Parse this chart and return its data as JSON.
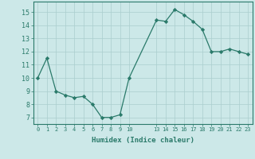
{
  "x": [
    0,
    1,
    2,
    3,
    4,
    5,
    6,
    7,
    8,
    9,
    10,
    13,
    14,
    15,
    16,
    17,
    18,
    19,
    20,
    21,
    22,
    23
  ],
  "y": [
    10.0,
    11.5,
    9.0,
    8.7,
    8.5,
    8.6,
    8.0,
    7.0,
    7.0,
    7.2,
    10.0,
    14.4,
    14.3,
    15.2,
    14.8,
    14.3,
    13.7,
    12.0,
    12.0,
    12.2,
    12.0,
    11.8
  ],
  "x_ticks": [
    0,
    1,
    2,
    3,
    4,
    5,
    6,
    7,
    8,
    9,
    10,
    13,
    14,
    15,
    16,
    17,
    18,
    19,
    20,
    21,
    22,
    23
  ],
  "x_tick_labels": [
    "0",
    "1",
    "2",
    "3",
    "4",
    "5",
    "6",
    "7",
    "8",
    "9",
    "10",
    "13",
    "14",
    "15",
    "16",
    "17",
    "18",
    "19",
    "20",
    "21",
    "22",
    "23"
  ],
  "y_ticks": [
    7,
    8,
    9,
    10,
    11,
    12,
    13,
    14,
    15
  ],
  "ylim": [
    6.5,
    15.8
  ],
  "xlim": [
    -0.5,
    23.5
  ],
  "xlabel": "Humidex (Indice chaleur)",
  "line_color": "#2a7a6a",
  "marker_color": "#2a7a6a",
  "bg_color": "#cce8e8",
  "grid_color": "#aacece"
}
